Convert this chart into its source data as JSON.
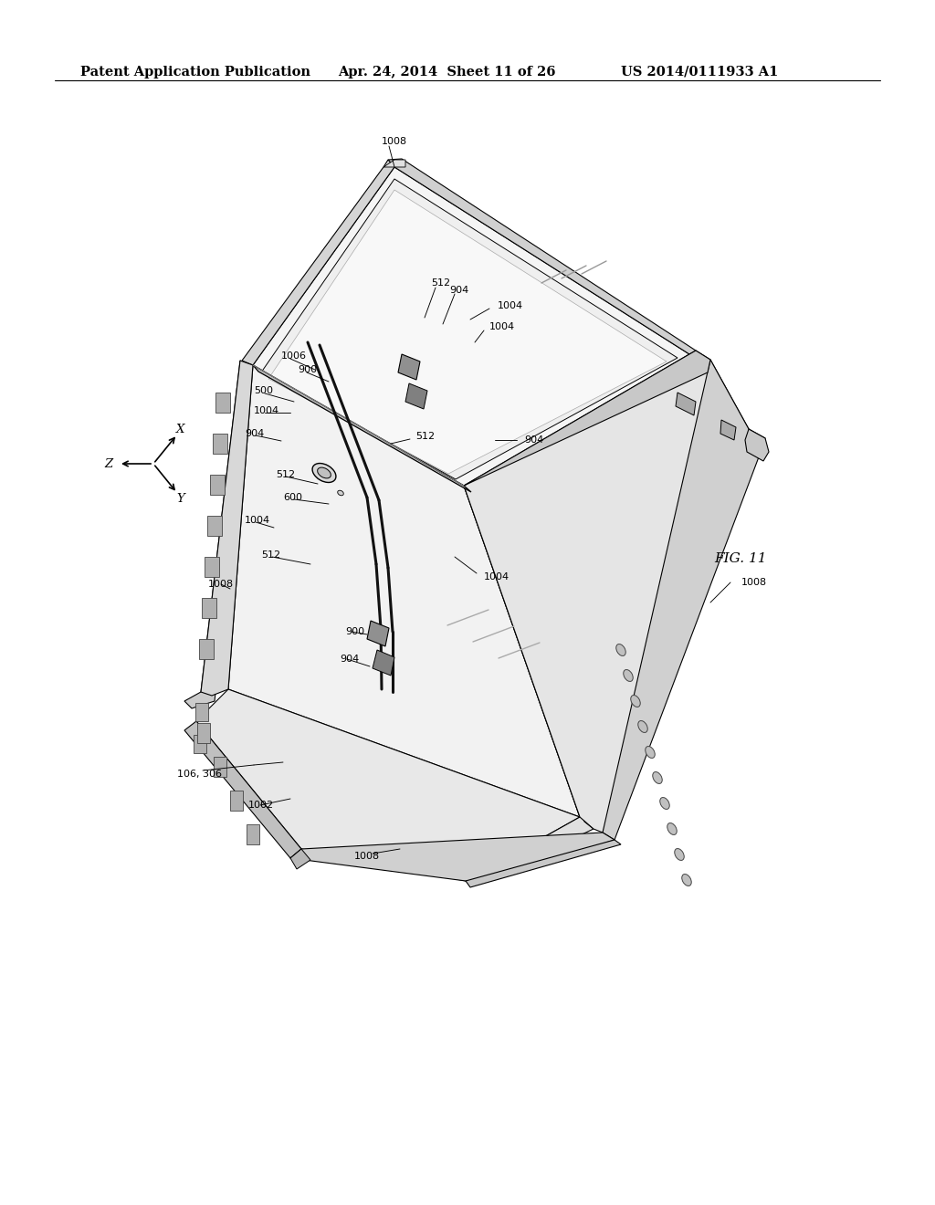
{
  "bg_color": "#ffffff",
  "header_left": "Patent Application Publication",
  "header_mid": "Apr. 24, 2014  Sheet 11 of 26",
  "header_right": "US 2014/0111933 A1",
  "fig_label": "FIG. 11",
  "header_fontsize": 10.5,
  "label_fontsize": 8.0,
  "axis_label_fontsize": 9.5
}
